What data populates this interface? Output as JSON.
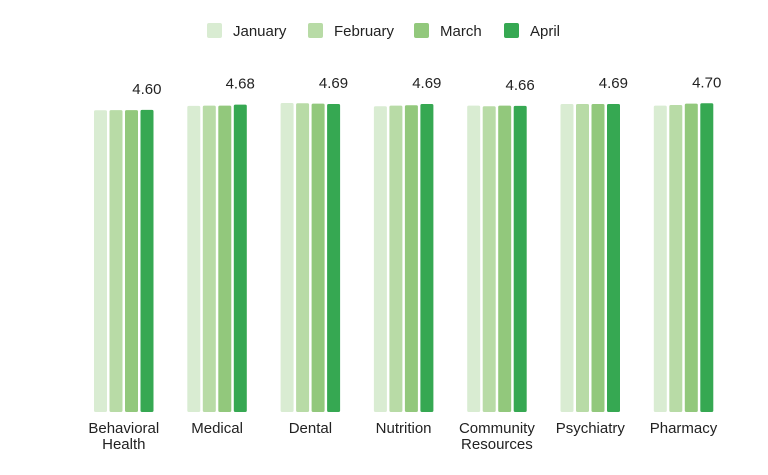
{
  "colors": {
    "January": "#d9ecd2",
    "February": "#b8dba6",
    "March": "#92c87c",
    "April": "#36a852"
  },
  "chart_data": {
    "type": "bar",
    "categories": [
      [
        "Behavioral",
        "Health"
      ],
      [
        "Medical"
      ],
      [
        "Dental"
      ],
      [
        "Nutrition"
      ],
      [
        "Community",
        "Resources"
      ],
      [
        "Psychiatry"
      ],
      [
        "Pharmacy"
      ]
    ],
    "series": [
      {
        "name": "January",
        "values": [
          4.595,
          4.66,
          4.705,
          4.655,
          4.665,
          4.69,
          4.665
        ]
      },
      {
        "name": "February",
        "values": [
          4.597,
          4.665,
          4.7,
          4.665,
          4.655,
          4.69,
          4.675
        ]
      },
      {
        "name": "March",
        "values": [
          4.597,
          4.665,
          4.695,
          4.67,
          4.665,
          4.69,
          4.695
        ]
      },
      {
        "name": "April",
        "values": [
          4.6,
          4.68,
          4.69,
          4.69,
          4.66,
          4.69,
          4.7
        ]
      }
    ],
    "data_labels": [
      "4.60",
      "4.68",
      "4.69",
      "4.69",
      "4.66",
      "4.69",
      "4.70"
    ],
    "ylim": [
      0,
      4.72
    ],
    "legend": "top",
    "grid": false
  }
}
